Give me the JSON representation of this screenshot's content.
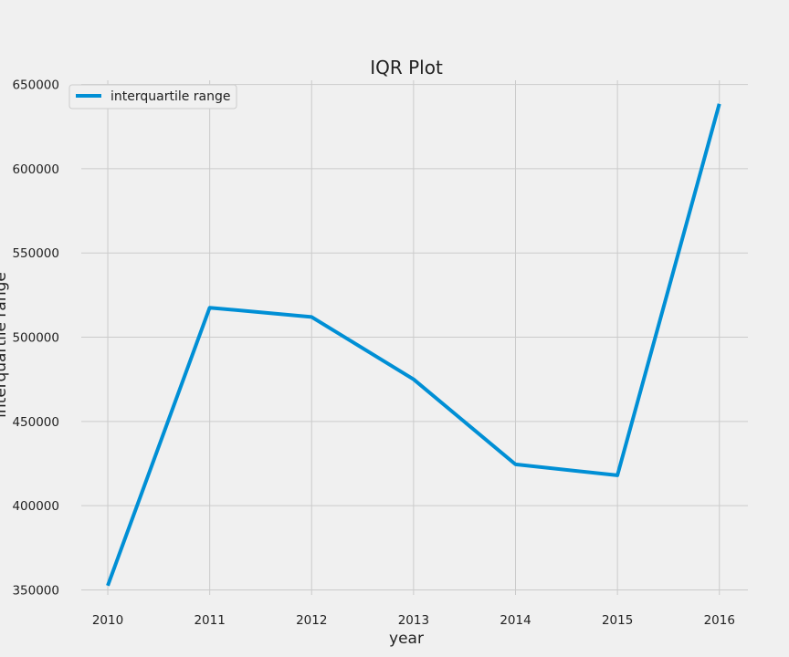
{
  "chart_data": {
    "type": "line",
    "title": "IQR Plot",
    "xlabel": "year",
    "ylabel": "interquartile range",
    "x": [
      2010,
      2011,
      2012,
      2013,
      2014,
      2015,
      2016
    ],
    "series": [
      {
        "name": "interquartile range",
        "values": [
          352500,
          517500,
          512000,
          475000,
          424500,
          418000,
          638500
        ]
      }
    ],
    "xticks": [
      2010,
      2011,
      2012,
      2013,
      2014,
      2015,
      2016
    ],
    "yticks": [
      350000,
      400000,
      450000,
      500000,
      550000,
      600000,
      650000
    ],
    "xlim": [
      2009.74,
      2016.28
    ],
    "ylim": [
      347000,
      652500
    ],
    "grid": true,
    "legend_position": "top-left",
    "line_color": "#008fd5",
    "background_color": "#f0f0f0",
    "grid_color": "#cbcbcb"
  }
}
